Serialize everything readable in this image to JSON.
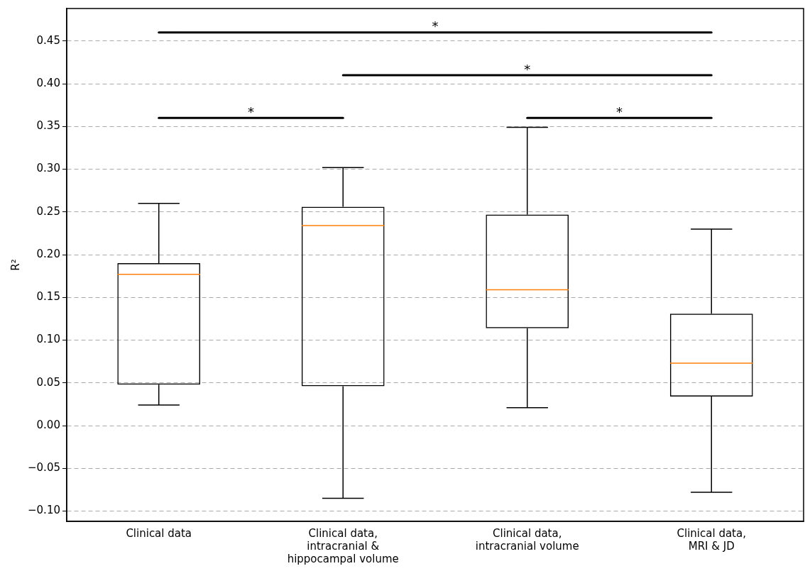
{
  "chart_data": {
    "type": "box",
    "categories": [
      "Clinical data",
      "Clinical data, intracranial & hippocampal volume",
      "Clinical data, intracranial volume",
      "Clinical data, MRI & JD"
    ],
    "boxes": [
      {
        "low": 0.024,
        "q1": 0.048,
        "median": 0.177,
        "q3": 0.19,
        "high": 0.26
      },
      {
        "low": -0.085,
        "q1": 0.046,
        "median": 0.234,
        "q3": 0.256,
        "high": 0.302
      },
      {
        "low": 0.021,
        "q1": 0.114,
        "median": 0.159,
        "q3": 0.247,
        "high": 0.349
      },
      {
        "low": -0.078,
        "q1": 0.034,
        "median": 0.073,
        "q3": 0.131,
        "high": 0.23
      }
    ],
    "color": "#000000",
    "ylabel": "R²",
    "ylim": [
      -0.112,
      0.488
    ],
    "yticks": [
      {
        "value": -0.1,
        "label": "−0.10"
      },
      {
        "value": -0.05,
        "label": "−0.05"
      },
      {
        "value": 0,
        "label": "0.00"
      },
      {
        "value": 0.05,
        "label": "0.05"
      },
      {
        "value": 0.1,
        "label": "0.10"
      },
      {
        "value": 0.15,
        "label": "0.15"
      },
      {
        "value": 0.2,
        "label": "0.20"
      },
      {
        "value": 0.25,
        "label": "0.25"
      },
      {
        "value": 0.3,
        "label": "0.30"
      },
      {
        "value": 0.35,
        "label": "0.35"
      },
      {
        "value": 0.4,
        "label": "0.40"
      },
      {
        "value": 0.45,
        "label": "0.45"
      }
    ],
    "grid": "y",
    "line_style": "dashed",
    "annotations": [
      "*",
      "*",
      "*",
      "*"
    ]
  }
}
